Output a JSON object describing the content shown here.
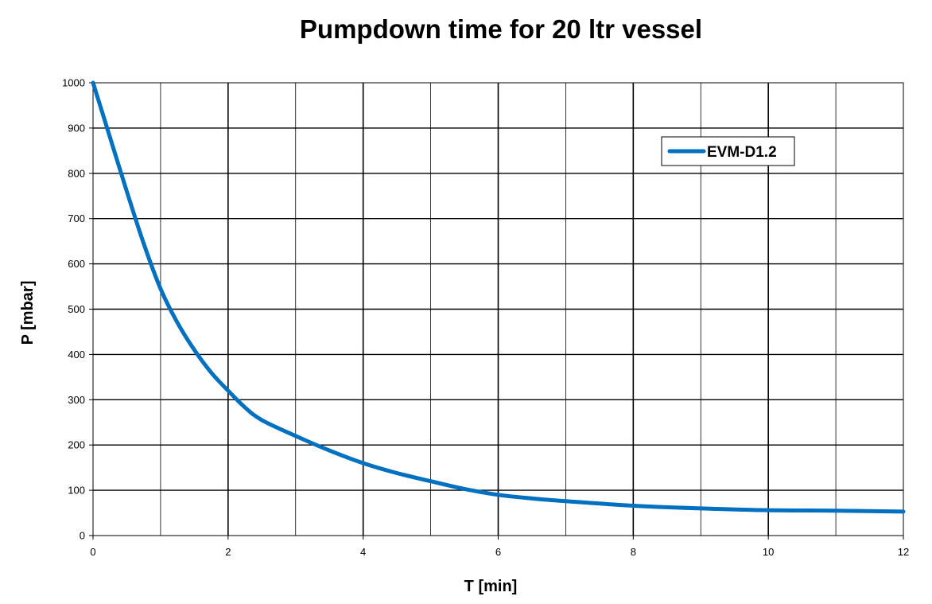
{
  "chart_data": {
    "type": "line",
    "title": "Pumpdown time for 20 ltr vessel",
    "xlabel": "T [min]",
    "ylabel": "P [mbar]",
    "xlim": [
      0,
      12
    ],
    "ylim": [
      0,
      1000
    ],
    "x_ticks": [
      0,
      2,
      4,
      6,
      8,
      10,
      12
    ],
    "x_tick_labels": [
      "0",
      "2",
      "4",
      "6",
      "8",
      "10",
      "12"
    ],
    "x_minor_grid": [
      1,
      3,
      5,
      7,
      9,
      11
    ],
    "y_ticks": [
      0,
      100,
      200,
      300,
      400,
      500,
      600,
      700,
      800,
      900,
      1000
    ],
    "y_tick_labels": [
      "0",
      "100",
      "200",
      "300",
      "400",
      "500",
      "600",
      "700",
      "800",
      "900",
      "1000"
    ],
    "grid": true,
    "legend_position": "top-right",
    "series": [
      {
        "name": "EVM-D1.2",
        "color": "#0070c0",
        "x": [
          0,
          0.25,
          0.5,
          0.75,
          1.0,
          1.25,
          1.5,
          1.75,
          2.0,
          2.25,
          2.5,
          3.0,
          3.5,
          4.0,
          4.5,
          5.0,
          5.5,
          6.0,
          6.5,
          7.0,
          8.0,
          9.0,
          10.0,
          11.0,
          12.0
        ],
        "y": [
          1000,
          880,
          760,
          645,
          545,
          470,
          410,
          360,
          320,
          283,
          255,
          220,
          188,
          160,
          138,
          120,
          103,
          90,
          82,
          76,
          66,
          60,
          56,
          55,
          53
        ]
      }
    ]
  }
}
